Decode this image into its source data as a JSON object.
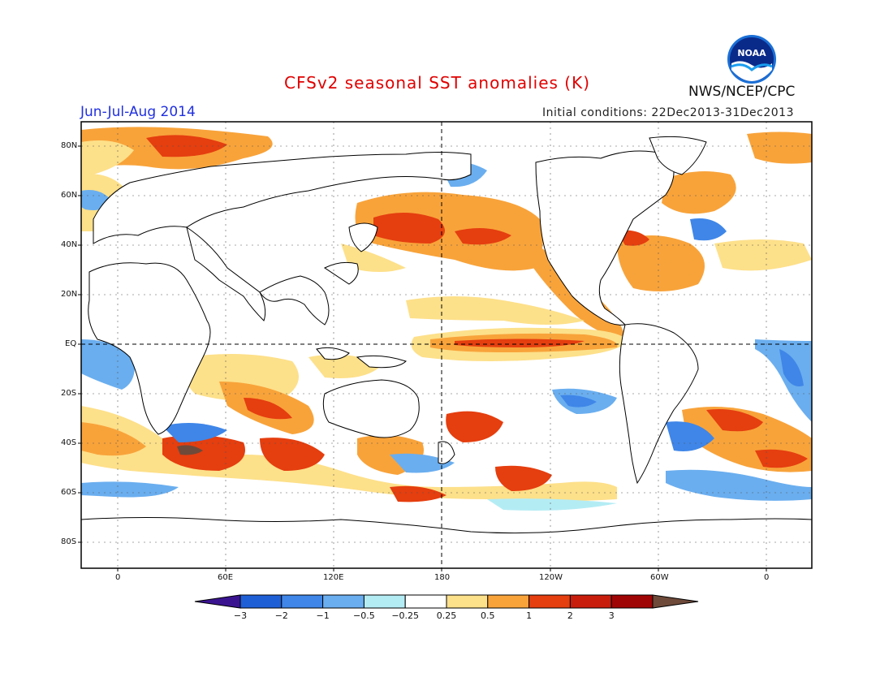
{
  "header": {
    "title": "CFSv2 seasonal SST anomalies (K)",
    "season": "Jun-Jul-Aug 2014",
    "initial_conditions": "Initial conditions: 22Dec2013-31Dec2013",
    "agency": "NWS/NCEP/CPC",
    "logo_text": "NOAA"
  },
  "map": {
    "lat_labels": [
      "80N",
      "60N",
      "40N",
      "20N",
      "EQ",
      "20S",
      "40S",
      "60S",
      "80S"
    ],
    "lon_labels": [
      "0",
      "60E",
      "120E",
      "180",
      "120W",
      "60W",
      "0"
    ],
    "projection": "cylindrical equidistant",
    "center_meridian": "180"
  },
  "colorbar": {
    "labels": [
      "−3",
      "−2",
      "−1",
      "−0.5",
      "−0.25",
      "0.25",
      "0.5",
      "1",
      "2",
      "3"
    ],
    "colors": [
      "#3a1490",
      "#1e5fd6",
      "#3f86e8",
      "#6aaeef",
      "#b4ecf4",
      "#ffffff",
      "#fde08a",
      "#f8a33a",
      "#e53e0f",
      "#c81c0c",
      "#a00505",
      "#6e4a3a"
    ]
  }
}
